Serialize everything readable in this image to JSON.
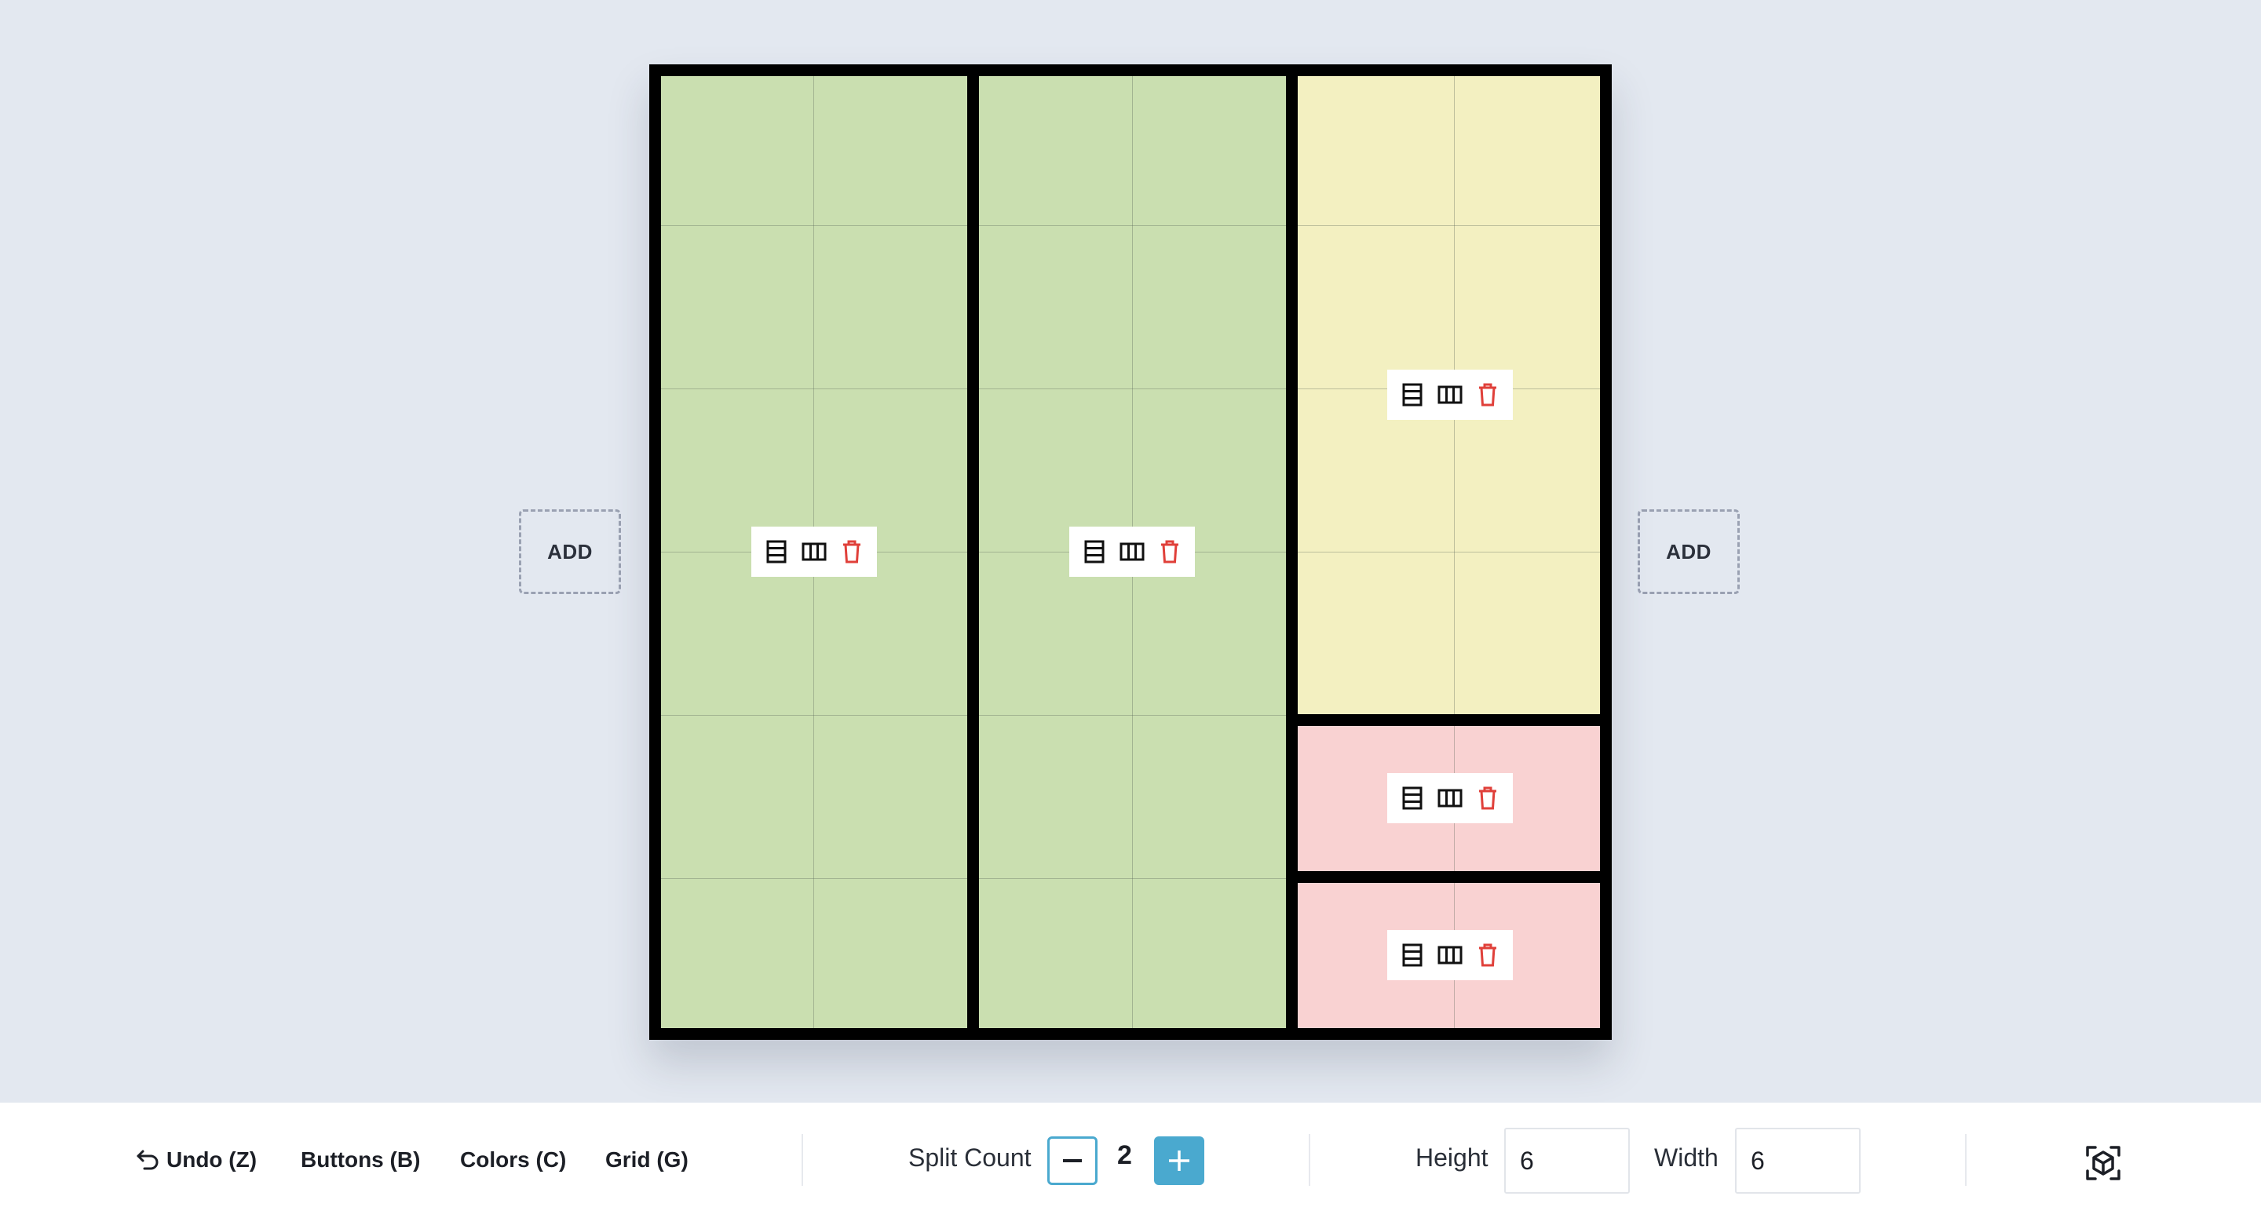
{
  "add_left": {
    "label": "ADD"
  },
  "add_right": {
    "label": "ADD"
  },
  "panels": [
    {
      "name": "column-1",
      "color": "green"
    },
    {
      "name": "column-2",
      "color": "green"
    },
    {
      "name": "column-3-top",
      "color": "yellow"
    },
    {
      "name": "column-3-middle",
      "color": "pink"
    },
    {
      "name": "column-3-bottom",
      "color": "pink"
    }
  ],
  "colors": {
    "green": "#cadfb0",
    "yellow": "#f3f0c1",
    "pink": "#f9d2d2",
    "accent": "#4aa9cf",
    "delete": "#e0403a"
  },
  "panel_tools": [
    "split-rows-icon",
    "split-columns-icon",
    "trash-icon"
  ],
  "toolbar": {
    "undo_label": "Undo (Z)",
    "buttons_label": "Buttons (B)",
    "colors_label": "Colors (C)",
    "grid_label": "Grid (G)",
    "split_count_label": "Split Count",
    "split_count_value": "2",
    "height_label": "Height",
    "height_value": "6",
    "width_label": "Width",
    "width_value": "6",
    "view_3d_icon": "cube-scan-icon"
  }
}
